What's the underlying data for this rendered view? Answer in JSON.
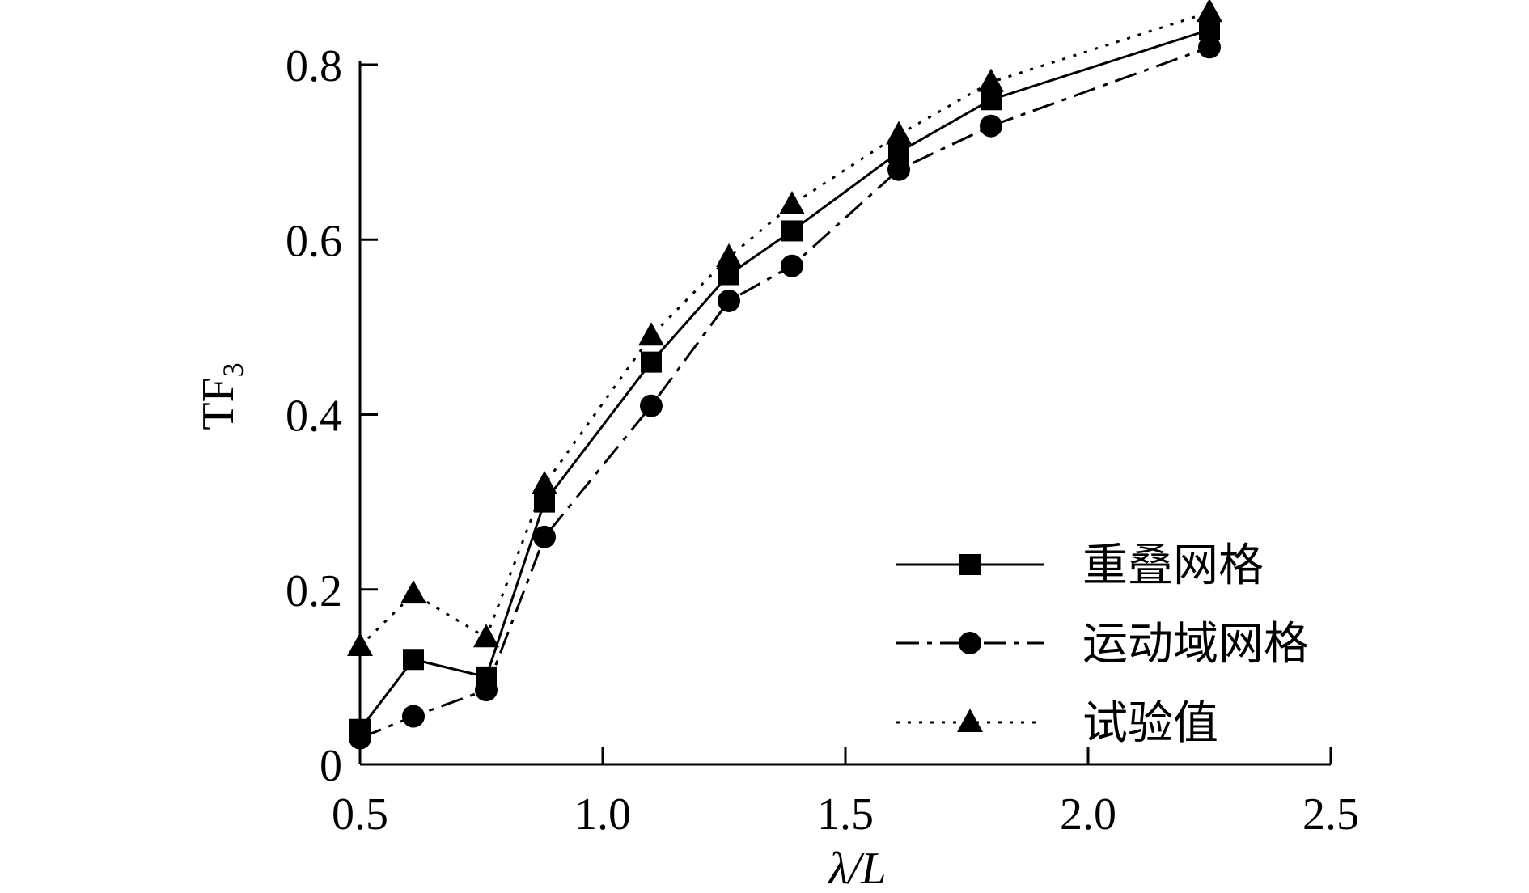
{
  "chart_data": {
    "type": "line",
    "xlabel": "λ/L",
    "ylabel_main": "TF",
    "ylabel_sub": "3",
    "xlim": [
      0.5,
      2.5
    ],
    "ylim": [
      0,
      0.8
    ],
    "xticks": [
      0.5,
      1.0,
      1.5,
      2.0,
      2.5
    ],
    "xtick_labels": [
      "0.5",
      "1.0",
      "1.5",
      "2.0",
      "2.5"
    ],
    "yticks": [
      0,
      0.2,
      0.4,
      0.6,
      0.8
    ],
    "ytick_labels": [
      "0",
      "0.2",
      "0.4",
      "0.6",
      "0.8"
    ],
    "grid": false,
    "legend_position": "bottom-right",
    "series": [
      {
        "name": "重叠网格",
        "marker": "square",
        "line_style": "solid",
        "x": [
          0.5,
          0.61,
          0.76,
          0.88,
          1.1,
          1.26,
          1.39,
          1.61,
          1.8,
          2.25
        ],
        "y": [
          0.04,
          0.12,
          0.1,
          0.3,
          0.46,
          0.56,
          0.61,
          0.7,
          0.76,
          0.84
        ]
      },
      {
        "name": "运动域网格",
        "marker": "circle",
        "line_style": "dashdot",
        "x": [
          0.5,
          0.61,
          0.76,
          0.88,
          1.1,
          1.26,
          1.39,
          1.61,
          1.8,
          2.25
        ],
        "y": [
          0.03,
          0.055,
          0.085,
          0.26,
          0.41,
          0.53,
          0.57,
          0.68,
          0.73,
          0.82
        ]
      },
      {
        "name": "试验值",
        "marker": "triangle",
        "line_style": "dotted",
        "x": [
          0.5,
          0.61,
          0.76,
          0.88,
          1.1,
          1.26,
          1.39,
          1.61,
          1.8,
          2.25
        ],
        "y": [
          0.135,
          0.195,
          0.145,
          0.32,
          0.49,
          0.58,
          0.64,
          0.72,
          0.78,
          0.86
        ]
      }
    ]
  }
}
